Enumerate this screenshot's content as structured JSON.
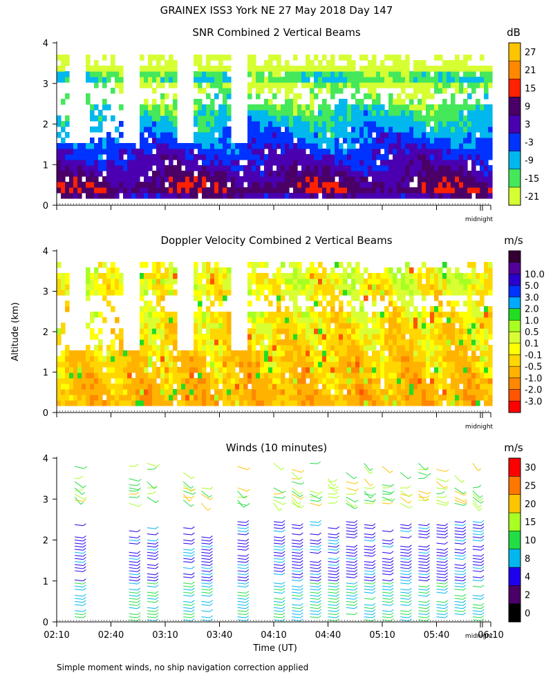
{
  "title": "GRAINEX ISS3 York NE  27 May 2018 Day 147",
  "ylabel": "Altitude (km)",
  "xlabel": "Time (UT)",
  "footer_note": "Simple moment winds, no ship navigation correction applied",
  "midnight_label": "midnight",
  "x_ticks": [
    "02:10",
    "02:40",
    "03:10",
    "03:40",
    "04:10",
    "04:40",
    "05:10",
    "05:40",
    "06:10"
  ],
  "y_ticks": [
    "0",
    "1",
    "2",
    "3",
    "4"
  ],
  "panels": [
    {
      "title": "SNR Combined 2 Vertical Beams",
      "unit": "dB",
      "colorbar": {
        "colors": [
          "#d6ff33",
          "#44e85a",
          "#00b7ee",
          "#0033ff",
          "#4a00b0",
          "#4a0066",
          "#ff2200",
          "#ff8800",
          "#ffc400"
        ],
        "labels": [
          "-21",
          "-15",
          "-9",
          "-3",
          "3",
          "9",
          "15",
          "21",
          "27"
        ]
      }
    },
    {
      "title": "Doppler Velocity Combined 2 Vertical Beams",
      "unit": "m/s",
      "colorbar": {
        "colors": [
          "#ff0000",
          "#ff5500",
          "#ff8800",
          "#ffb300",
          "#ffd600",
          "#ffff00",
          "#d9ff33",
          "#a8ff22",
          "#22dd22",
          "#00aaff",
          "#0033ff",
          "#2a00cc",
          "#550099",
          "#330033"
        ],
        "labels": [
          "-3.0",
          "-2.0",
          "-1.0",
          "-0.5",
          "-0.1",
          "0.1",
          "0.5",
          "1.0",
          "2.0",
          "3.0",
          "5.0",
          "10.0"
        ]
      }
    },
    {
      "title": "Winds (10 minutes)",
      "unit": "m/s",
      "colorbar": {
        "colors": [
          "#000000",
          "#4a0066",
          "#1f00ee",
          "#00b7ee",
          "#22dd44",
          "#a8ff22",
          "#ffc400",
          "#ff7700",
          "#ff0000"
        ],
        "labels": [
          "0",
          "2",
          "4",
          "8",
          "10",
          "15",
          "20",
          "25",
          "30"
        ]
      }
    }
  ],
  "chart_data": [
    {
      "type": "heatmap",
      "title": "SNR Combined 2 Vertical Beams",
      "unit": "dB",
      "xlabel": "Time (UT)",
      "ylabel": "Altitude (km)",
      "x_range": [
        "02:10",
        "06:10"
      ],
      "ylim": [
        0,
        4
      ],
      "data_gaps_utc": [
        "02:20",
        "02:50",
        "03:20",
        "03:50"
      ],
      "levels": [
        -21,
        -15,
        -9,
        -3,
        3,
        9,
        15,
        21,
        27
      ],
      "profile_by_altitude_km": [
        {
          "alt_km": 0.4,
          "snr_db": 6
        },
        {
          "alt_km": 0.8,
          "snr_db": 0
        },
        {
          "alt_km": 1.2,
          "snr_db": -6
        },
        {
          "alt_km": 1.6,
          "snr_db": -12
        },
        {
          "alt_km": 2.0,
          "snr_db": -18
        },
        {
          "alt_km": 2.6,
          "snr_db": -20
        },
        {
          "alt_km": 3.1,
          "snr_db": -13
        },
        {
          "alt_km": 3.6,
          "snr_db": -21
        }
      ]
    },
    {
      "type": "heatmap",
      "title": "Doppler Velocity Combined 2 Vertical Beams",
      "unit": "m/s",
      "xlabel": "Time (UT)",
      "ylabel": "Altitude (km)",
      "x_range": [
        "02:10",
        "06:10"
      ],
      "ylim": [
        0,
        4
      ],
      "levels": [
        -3.0,
        -2.0,
        -1.0,
        -0.5,
        -0.1,
        0.1,
        0.5,
        1.0,
        2.0,
        3.0,
        5.0,
        10.0
      ],
      "profile_by_altitude_km": [
        {
          "alt_km": 0.5,
          "w_ms": -0.8
        },
        {
          "alt_km": 1.0,
          "w_ms": -0.7
        },
        {
          "alt_km": 1.6,
          "w_ms": -0.4
        },
        {
          "alt_km": 2.1,
          "w_ms": 0.2
        },
        {
          "alt_km": 2.6,
          "w_ms": -0.3
        },
        {
          "alt_km": 3.1,
          "w_ms": 0.3
        }
      ]
    },
    {
      "type": "scatter",
      "title": "Winds (10 minutes)",
      "unit": "m/s",
      "xlabel": "Time (UT)",
      "ylabel": "Altitude (km)",
      "x_range": [
        "02:10",
        "06:10"
      ],
      "ylim": [
        0,
        4
      ],
      "profile_times_utc": [
        "02:20",
        "02:50",
        "03:00",
        "03:20",
        "03:30",
        "03:50",
        "04:10",
        "04:20",
        "04:30",
        "04:40",
        "04:50",
        "05:00",
        "05:10",
        "05:20",
        "05:30",
        "05:40",
        "05:50",
        "06:00"
      ],
      "typical_speed_ms": {
        "0-1 km": 9,
        "1-2.5 km": 6,
        "3-4 km": 18
      }
    }
  ]
}
